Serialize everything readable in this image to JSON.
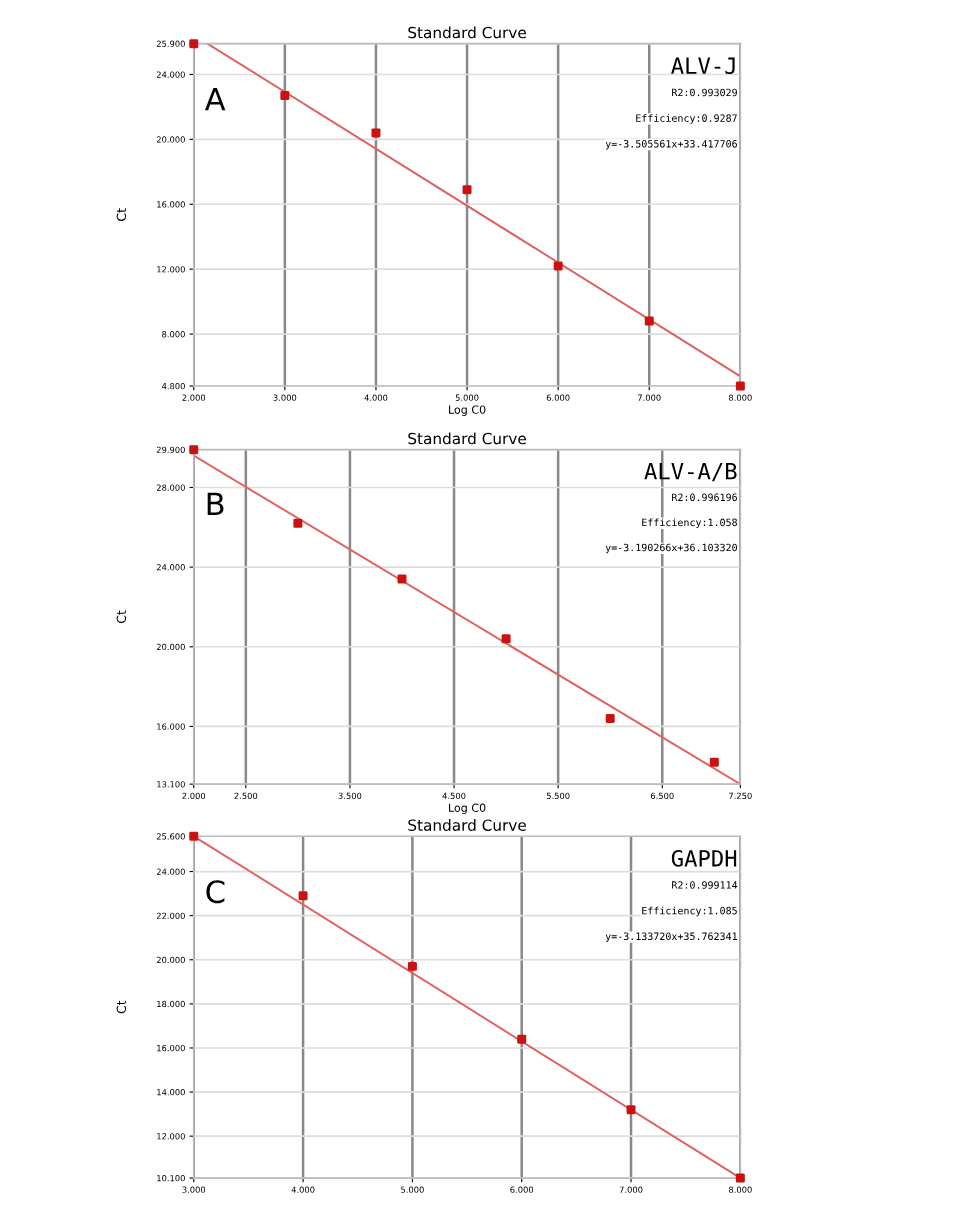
{
  "chart_data": [
    {
      "type": "scatter",
      "title": "Standard Curve",
      "xlabel": "Log C0",
      "ylabel": "Ct",
      "annotations": [
        "A",
        "ALV-J",
        "R2:0.993029",
        "Efficiency:0.9287",
        "y=-3.505561x+33.417706"
      ],
      "x": [
        2,
        3,
        4,
        5,
        6,
        7,
        8
      ],
      "series": [
        {
          "color": "#cc1111",
          "marker": "square",
          "values": [
            25.9,
            22.7,
            20.4,
            16.9,
            12.2,
            8.8,
            4.8
          ]
        },
        {
          "type": "line",
          "color": "#e06060",
          "x": [
            2.15,
            8
          ],
          "values": [
            25.9,
            5.4
          ]
        }
      ],
      "xlim": [
        2,
        8
      ],
      "xticks": [
        {
          "value": 2,
          "label": "2.000"
        },
        {
          "value": 3,
          "label": "3.000"
        },
        {
          "value": 4,
          "label": "4.000"
        },
        {
          "value": 5,
          "label": "5.000"
        },
        {
          "value": 6,
          "label": "6.000"
        },
        {
          "value": 7,
          "label": "7.000"
        },
        {
          "value": 8,
          "label": "8.000"
        }
      ],
      "ylim": [
        4.8,
        25.9
      ],
      "yticks": [
        {
          "value": 4.8,
          "label": "4.800"
        },
        {
          "value": 8,
          "label": "8.000"
        },
        {
          "value": 12,
          "label": "12.000"
        },
        {
          "value": 16,
          "label": "16.000"
        },
        {
          "value": 20,
          "label": "20.000"
        },
        {
          "value": 24,
          "label": "24.000"
        },
        {
          "value": 25.9,
          "label": "25.900"
        }
      ],
      "grid": true,
      "legend": false
    },
    {
      "type": "scatter",
      "title": "Standard Curve",
      "xlabel": "Log C0",
      "ylabel": "Ct",
      "annotations": [
        "B",
        "ALV-A/B",
        "R2:0.996196",
        "Efficiency:1.058",
        "y=-3.190266x+36.103320"
      ],
      "x": [
        2,
        3,
        4,
        5,
        6,
        7
      ],
      "series": [
        {
          "color": "#cc1111",
          "marker": "square",
          "values": [
            29.9,
            26.2,
            23.4,
            20.4,
            16.4,
            14.2
          ]
        },
        {
          "type": "line",
          "color": "#e06060",
          "x": [
            2,
            7.25
          ],
          "values": [
            29.6,
            13.1
          ]
        }
      ],
      "xlim": [
        2,
        7.25
      ],
      "xticks": [
        {
          "value": 2,
          "label": "2.000"
        },
        {
          "value": 2.5,
          "label": "2.500"
        },
        {
          "value": 3.5,
          "label": "3.500"
        },
        {
          "value": 4.5,
          "label": "4.500"
        },
        {
          "value": 5.5,
          "label": "5.500"
        },
        {
          "value": 6.5,
          "label": "6.500"
        },
        {
          "value": 7.25,
          "label": "7.250"
        }
      ],
      "ylim": [
        13.1,
        29.9
      ],
      "yticks": [
        {
          "value": 13.1,
          "label": "13.100"
        },
        {
          "value": 16,
          "label": "16.000"
        },
        {
          "value": 20,
          "label": "20.000"
        },
        {
          "value": 24,
          "label": "24.000"
        },
        {
          "value": 28,
          "label": "28.000"
        },
        {
          "value": 29.9,
          "label": "29.900"
        }
      ],
      "grid": true,
      "legend": false
    },
    {
      "type": "scatter",
      "title": "Standard Curve",
      "ylabel": "Ct",
      "annotations": [
        "C",
        "GAPDH",
        "R2:0.999114",
        "Efficiency:1.085",
        "y=-3.133720x+35.762341"
      ],
      "x": [
        3,
        4,
        5,
        6,
        7,
        8
      ],
      "series": [
        {
          "color": "#cc1111",
          "marker": "square",
          "values": [
            25.6,
            22.9,
            19.7,
            16.4,
            13.2,
            10.1
          ]
        },
        {
          "type": "line",
          "color": "#e06060",
          "x": [
            3,
            8
          ],
          "values": [
            25.6,
            10.1
          ]
        }
      ],
      "xlim": [
        3,
        8
      ],
      "xticks": [
        {
          "value": 3,
          "label": "3.000"
        },
        {
          "value": 4,
          "label": "4.000"
        },
        {
          "value": 5,
          "label": "5.000"
        },
        {
          "value": 6,
          "label": "6.000"
        },
        {
          "value": 7,
          "label": "7.000"
        },
        {
          "value": 8,
          "label": "8.000"
        }
      ],
      "ylim": [
        10.1,
        25.6
      ],
      "yticks": [
        {
          "value": 10.1,
          "label": "10.100"
        },
        {
          "value": 12,
          "label": "12.000"
        },
        {
          "value": 14,
          "label": "14.000"
        },
        {
          "value": 16,
          "label": "16.000"
        },
        {
          "value": 18,
          "label": "18.000"
        },
        {
          "value": 20,
          "label": "20.000"
        },
        {
          "value": 22,
          "label": "22.000"
        },
        {
          "value": 24,
          "label": "24.000"
        },
        {
          "value": 25.6,
          "label": "25.600"
        }
      ],
      "grid": true,
      "legend": false
    }
  ]
}
